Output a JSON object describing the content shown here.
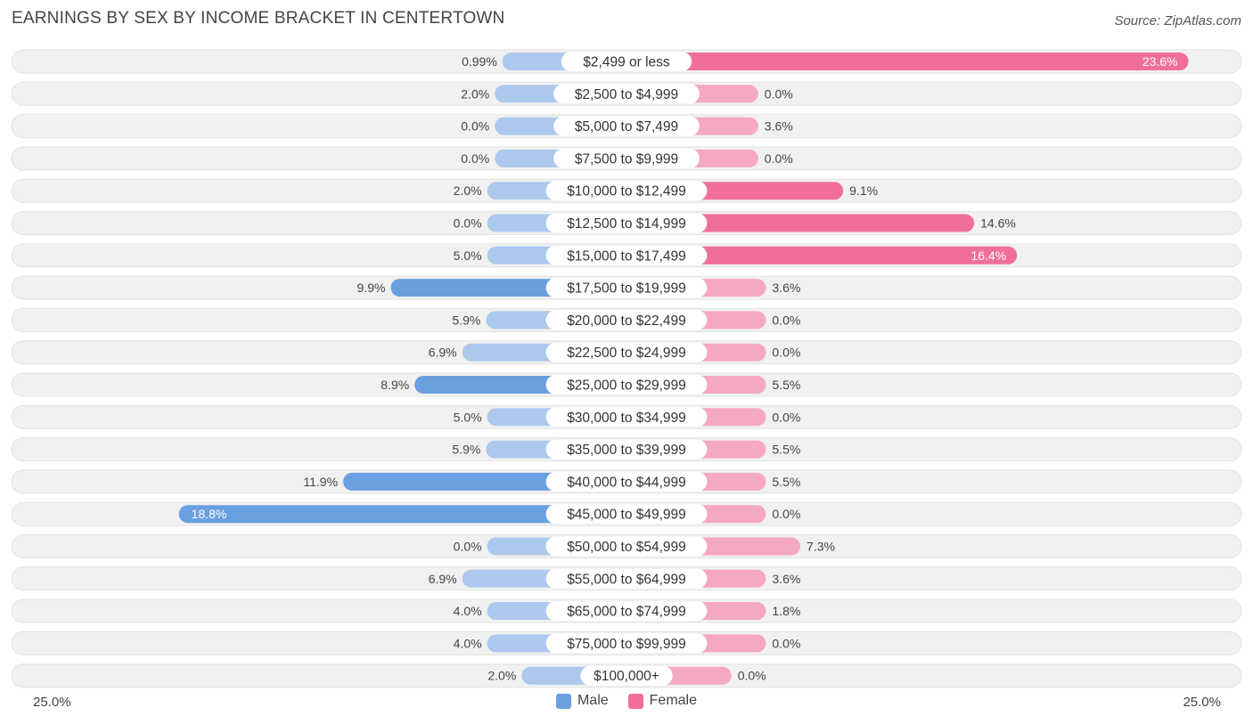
{
  "title": "EARNINGS BY SEX BY INCOME BRACKET IN CENTERTOWN",
  "source": "Source: ZipAtlas.com",
  "colors": {
    "male": "#6a9fe0",
    "male_light": "#a8c6ec",
    "female": "#f06f9a",
    "female_light": "#f5a8c2",
    "row_bg": "#f1f1f1"
  },
  "chart_data": {
    "type": "bar",
    "orientation": "horizontal-diverging",
    "title": "EARNINGS BY SEX BY INCOME BRACKET IN CENTERTOWN",
    "axis_min_label": "25.0%",
    "axis_max_label": "25.0%",
    "xlim": [
      -25,
      25
    ],
    "categories": [
      "$2,499 or less",
      "$2,500 to $4,999",
      "$5,000 to $7,499",
      "$7,500 to $9,999",
      "$10,000 to $12,499",
      "$12,500 to $14,999",
      "$15,000 to $17,499",
      "$17,500 to $19,999",
      "$20,000 to $22,499",
      "$22,500 to $24,999",
      "$25,000 to $29,999",
      "$30,000 to $34,999",
      "$35,000 to $39,999",
      "$40,000 to $44,999",
      "$45,000 to $49,999",
      "$50,000 to $54,999",
      "$55,000 to $64,999",
      "$65,000 to $74,999",
      "$75,000 to $99,999",
      "$100,000+"
    ],
    "series": [
      {
        "name": "Male",
        "values": [
          0.99,
          2.0,
          0.0,
          0.0,
          2.0,
          0.0,
          5.0,
          9.9,
          5.9,
          6.9,
          8.9,
          5.0,
          5.9,
          11.9,
          18.8,
          0.0,
          6.9,
          4.0,
          4.0,
          2.0
        ],
        "labels": [
          "0.99%",
          "2.0%",
          "0.0%",
          "0.0%",
          "2.0%",
          "0.0%",
          "5.0%",
          "9.9%",
          "5.9%",
          "6.9%",
          "8.9%",
          "5.0%",
          "5.9%",
          "11.9%",
          "18.8%",
          "0.0%",
          "6.9%",
          "4.0%",
          "4.0%",
          "2.0%"
        ]
      },
      {
        "name": "Female",
        "values": [
          23.6,
          0.0,
          3.6,
          0.0,
          9.1,
          14.6,
          16.4,
          3.6,
          0.0,
          0.0,
          5.5,
          0.0,
          5.5,
          5.5,
          0.0,
          7.3,
          3.6,
          1.8,
          0.0,
          0.0
        ],
        "labels": [
          "23.6%",
          "0.0%",
          "3.6%",
          "0.0%",
          "9.1%",
          "14.6%",
          "16.4%",
          "3.6%",
          "0.0%",
          "0.0%",
          "5.5%",
          "0.0%",
          "5.5%",
          "5.5%",
          "0.0%",
          "7.3%",
          "3.6%",
          "1.8%",
          "0.0%",
          "0.0%"
        ]
      }
    ],
    "legend": [
      "Male",
      "Female"
    ],
    "legend_position": "bottom-center"
  }
}
